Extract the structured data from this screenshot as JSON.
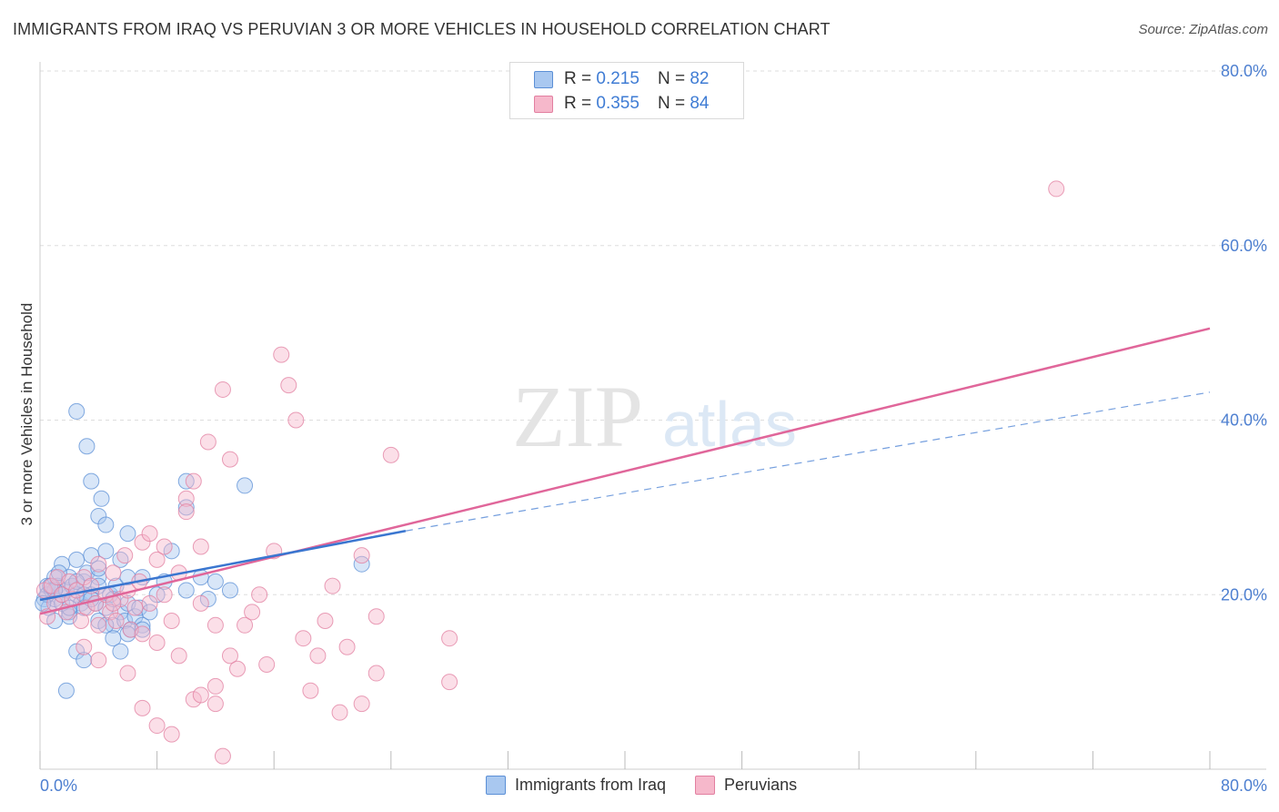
{
  "header": {
    "title": "IMMIGRANTS FROM IRAQ VS PERUVIAN 3 OR MORE VEHICLES IN HOUSEHOLD CORRELATION CHART",
    "source": "Source: ZipAtlas.com"
  },
  "watermark": {
    "zip": "ZIP",
    "atlas": "atlas"
  },
  "legend": {
    "rows": [
      {
        "r_label": "R =",
        "r_value": "0.215",
        "n_label": "N =",
        "n_value": "82"
      },
      {
        "r_label": "R =",
        "r_value": "0.355",
        "n_label": "N =",
        "n_value": "84"
      }
    ]
  },
  "bottom_legend": {
    "series1": "Immigrants from Iraq",
    "series2": "Peruvians"
  },
  "colors": {
    "iraq_fill": "#a9c8f0",
    "iraq_stroke": "#5b8fd6",
    "iraq_line": "#3a76d0",
    "peru_fill": "#f6b8cb",
    "peru_stroke": "#e27fa0",
    "peru_line": "#e0669a",
    "tick_text": "#4d7fd0",
    "grid": "#dddddd"
  },
  "chart_data": {
    "type": "scatter",
    "title": "IMMIGRANTS FROM IRAQ VS PERUVIAN 3 OR MORE VEHICLES IN HOUSEHOLD CORRELATION CHART",
    "xlabel": "",
    "ylabel": "3 or more Vehicles in Household",
    "xlim": [
      0,
      80
    ],
    "ylim": [
      0,
      80
    ],
    "x_tick_labels": [
      "0.0%",
      "80.0%"
    ],
    "y_ticks": [
      20,
      40,
      60,
      80
    ],
    "y_tick_labels": [
      "20.0%",
      "40.0%",
      "60.0%",
      "80.0%"
    ],
    "series": [
      {
        "name": "Immigrants from Iraq",
        "R": 0.215,
        "N": 82,
        "trend": {
          "x_solid": [
            0,
            25
          ],
          "y_solid": [
            19.4,
            27.3
          ],
          "x_dashed": [
            25,
            80
          ],
          "y_dashed": [
            27.3,
            43.2
          ]
        },
        "points": [
          [
            0.3,
            19.5
          ],
          [
            0.5,
            21
          ],
          [
            0.6,
            18.5
          ],
          [
            0.8,
            20.5
          ],
          [
            1,
            22
          ],
          [
            1,
            19.5
          ],
          [
            1.2,
            21
          ],
          [
            1.5,
            20
          ],
          [
            1.5,
            23.5
          ],
          [
            1.8,
            20.5
          ],
          [
            2,
            18
          ],
          [
            2,
            22
          ],
          [
            2.2,
            21
          ],
          [
            2.5,
            20
          ],
          [
            2.5,
            24
          ],
          [
            2.8,
            19
          ],
          [
            3,
            21.5
          ],
          [
            3,
            18.5
          ],
          [
            3.2,
            22.5
          ],
          [
            3.5,
            20
          ],
          [
            3.5,
            24.5
          ],
          [
            3.8,
            19
          ],
          [
            4,
            17
          ],
          [
            4,
            22
          ],
          [
            4,
            21
          ],
          [
            4.5,
            18.5
          ],
          [
            4.5,
            25
          ],
          [
            4.8,
            20
          ],
          [
            5,
            16.5
          ],
          [
            5,
            19.5
          ],
          [
            5.2,
            21
          ],
          [
            5.5,
            18
          ],
          [
            5.5,
            24
          ],
          [
            5.8,
            17
          ],
          [
            6,
            19
          ],
          [
            6,
            22
          ],
          [
            6.2,
            16
          ],
          [
            6.5,
            17.5
          ],
          [
            6.8,
            18.5
          ],
          [
            7,
            22
          ],
          [
            7,
            16.5
          ],
          [
            7.5,
            18
          ],
          [
            8,
            20
          ],
          [
            8.5,
            21.5
          ],
          [
            9,
            25
          ],
          [
            10,
            20.5
          ],
          [
            11,
            22
          ],
          [
            11.5,
            19.5
          ],
          [
            12,
            21.5
          ],
          [
            13,
            20.5
          ],
          [
            0.5,
            20
          ],
          [
            1,
            20.5
          ],
          [
            1.5,
            19
          ],
          [
            2,
            17.5
          ],
          [
            2.5,
            21.5
          ],
          [
            3,
            20
          ],
          [
            3.5,
            19.5
          ],
          [
            4,
            23
          ],
          [
            4.5,
            16.5
          ],
          [
            5,
            15
          ],
          [
            5.5,
            13.5
          ],
          [
            6,
            15.5
          ],
          [
            2.5,
            13.5
          ],
          [
            3,
            12.5
          ],
          [
            3.5,
            33
          ],
          [
            4,
            29
          ],
          [
            4.2,
            31
          ],
          [
            4.5,
            28
          ],
          [
            3.2,
            37
          ],
          [
            2.5,
            41
          ],
          [
            10,
            33
          ],
          [
            10,
            30
          ],
          [
            14,
            32.5
          ],
          [
            22,
            23.5
          ],
          [
            1.8,
            9
          ],
          [
            6,
            27
          ],
          [
            7,
            16
          ],
          [
            1,
            17
          ],
          [
            2,
            18.5
          ],
          [
            0.2,
            19
          ],
          [
            0.7,
            21
          ],
          [
            1.3,
            22.5
          ]
        ]
      },
      {
        "name": "Peruvians",
        "R": 0.355,
        "N": 84,
        "trend": {
          "x": [
            0,
            80
          ],
          "y": [
            17.8,
            50.5
          ]
        },
        "points": [
          [
            0.3,
            20.5
          ],
          [
            0.5,
            17.5
          ],
          [
            0.8,
            21
          ],
          [
            1,
            19
          ],
          [
            1.2,
            22
          ],
          [
            1.5,
            20
          ],
          [
            1.8,
            18
          ],
          [
            2,
            21.5
          ],
          [
            2.2,
            19.5
          ],
          [
            2.5,
            20.5
          ],
          [
            2.8,
            17
          ],
          [
            3,
            22
          ],
          [
            3.2,
            18.5
          ],
          [
            3.5,
            21
          ],
          [
            3.8,
            19
          ],
          [
            4,
            23.5
          ],
          [
            4,
            16.5
          ],
          [
            4.5,
            20
          ],
          [
            4.8,
            18
          ],
          [
            5,
            22.5
          ],
          [
            5.2,
            17
          ],
          [
            5.5,
            19.5
          ],
          [
            5.8,
            24.5
          ],
          [
            6,
            20.5
          ],
          [
            6.2,
            16
          ],
          [
            6.5,
            18.5
          ],
          [
            6.8,
            21.5
          ],
          [
            7,
            15.5
          ],
          [
            7,
            26
          ],
          [
            7.5,
            27
          ],
          [
            7.5,
            19
          ],
          [
            8,
            24
          ],
          [
            8,
            14.5
          ],
          [
            8.5,
            25.5
          ],
          [
            8.5,
            20
          ],
          [
            9,
            17
          ],
          [
            9.5,
            22.5
          ],
          [
            9.5,
            13
          ],
          [
            10,
            31
          ],
          [
            10,
            29.5
          ],
          [
            10.5,
            33
          ],
          [
            11,
            25.5
          ],
          [
            11,
            19
          ],
          [
            11.5,
            37.5
          ],
          [
            12,
            16.5
          ],
          [
            12,
            9.5
          ],
          [
            12.5,
            43.5
          ],
          [
            13,
            13
          ],
          [
            13,
            35.5
          ],
          [
            13.5,
            11.5
          ],
          [
            14,
            16.5
          ],
          [
            14.5,
            18
          ],
          [
            15,
            20
          ],
          [
            15.5,
            12
          ],
          [
            16,
            25
          ],
          [
            16.5,
            47.5
          ],
          [
            17,
            44
          ],
          [
            17.5,
            40
          ],
          [
            18,
            15
          ],
          [
            18.5,
            9
          ],
          [
            19,
            13
          ],
          [
            19.5,
            17
          ],
          [
            20,
            21
          ],
          [
            20.5,
            6.5
          ],
          [
            21,
            14
          ],
          [
            22,
            24.5
          ],
          [
            23,
            11
          ],
          [
            24,
            36
          ],
          [
            28,
            15
          ],
          [
            28,
            10
          ],
          [
            3,
            14
          ],
          [
            4,
            12.5
          ],
          [
            5,
            19
          ],
          [
            6,
            11
          ],
          [
            7,
            7
          ],
          [
            8,
            5
          ],
          [
            9,
            4
          ],
          [
            10.5,
            8
          ],
          [
            11,
            8.5
          ],
          [
            12,
            7.5
          ],
          [
            12.5,
            1.5
          ],
          [
            22,
            7.5
          ],
          [
            23,
            17.5
          ],
          [
            69.5,
            66.5
          ]
        ]
      }
    ]
  }
}
